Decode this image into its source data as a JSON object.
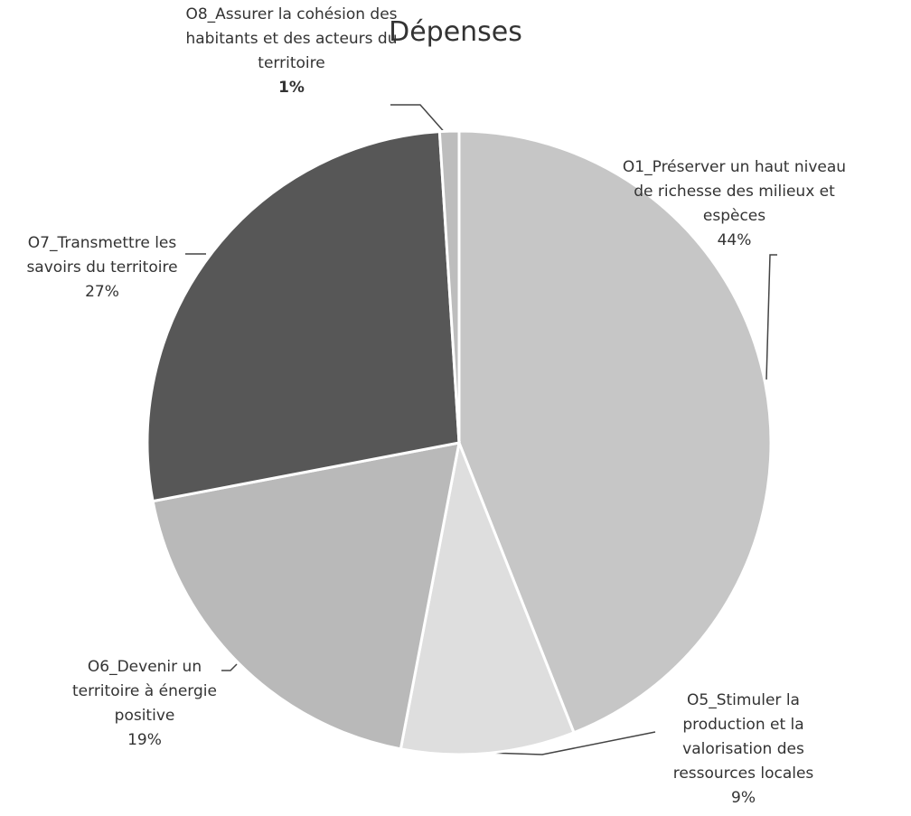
{
  "chart_data": {
    "type": "pie",
    "title": "Dépenses",
    "categories": [
      "O1_Préserver un haut niveau de richesse des milieux et espèces",
      "O5_Stimuler la production et la valorisation des ressources locales",
      "O6_Devenir un territoire à énergie positive",
      "O7_Transmettre les savoirs du territoire",
      "O8_Assurer la cohésion des habitants et des acteurs du territoire"
    ],
    "values": [
      44,
      9,
      19,
      27,
      1
    ],
    "value_labels": [
      "44%",
      "9%",
      "19%",
      "27%",
      "1%"
    ],
    "colors": [
      "#c6c6c6",
      "#dedede",
      "#b9b9b9",
      "#575757",
      "#bdbdbd"
    ]
  }
}
